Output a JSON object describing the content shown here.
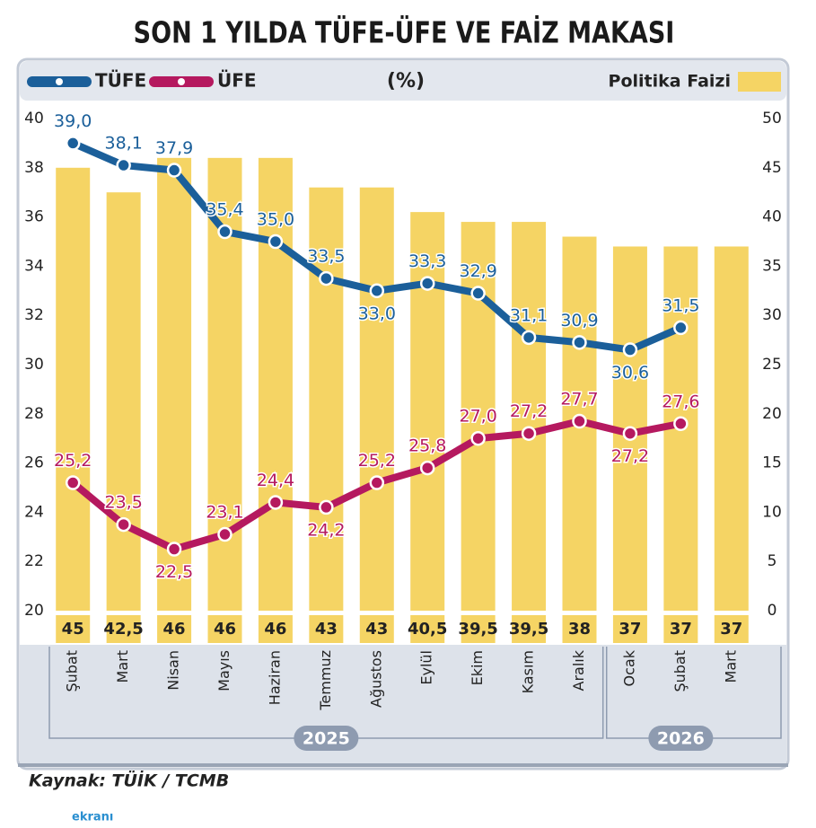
{
  "chart_data": {
    "type": "combo",
    "title": "SON 1 YILDA TÜFE-ÜFE VE FAİZ MAKASI",
    "unit": "(%)",
    "source": "Kaynak:  TÜİK / TCMB",
    "watermark": "ekranı",
    "categories": [
      "Şubat",
      "Mart",
      "Nisan",
      "Mayıs",
      "Haziran",
      "Temmuz",
      "Ağustos",
      "Eylül",
      "Ekim",
      "Kasım",
      "Aralık",
      "Ocak",
      "Şubat",
      "Mart"
    ],
    "groups": [
      {
        "label": "2025",
        "count": 11
      },
      {
        "label": "2026",
        "count": 3
      }
    ],
    "ylim": [
      20,
      40
    ],
    "yticks": [
      20,
      22,
      24,
      26,
      28,
      30,
      32,
      34,
      36,
      38,
      40
    ],
    "y2lim": [
      0,
      50
    ],
    "y2ticks": [
      0,
      5,
      10,
      15,
      20,
      25,
      30,
      35,
      40,
      45,
      50
    ],
    "series": [
      {
        "name": "TÜFE",
        "type": "line",
        "color": "#1b5f9a",
        "values": [
          39.0,
          38.1,
          37.9,
          35.4,
          35.0,
          33.5,
          33.0,
          33.3,
          32.9,
          31.1,
          30.9,
          30.6,
          31.5,
          null
        ],
        "value_labels": [
          "39,0",
          "38,1",
          "37,9",
          "35,4",
          "35,0",
          "33,5",
          "33,0",
          "33,3",
          "32,9",
          "31,1",
          "30,9",
          "30,6",
          "31,5",
          null
        ]
      },
      {
        "name": "ÜFE",
        "type": "line",
        "color": "#b5195f",
        "values": [
          25.2,
          23.5,
          22.5,
          23.1,
          24.4,
          24.2,
          25.2,
          25.8,
          27.0,
          27.2,
          27.7,
          27.2,
          27.6,
          null
        ],
        "value_labels": [
          "25,2",
          "23,5",
          "22,5",
          "23,1",
          "24,4",
          "24,2",
          "25,2",
          "25,8",
          "27,0",
          "27,2",
          "27,7",
          "27,2",
          "27,6",
          null
        ]
      },
      {
        "name": "Politika Faizi",
        "type": "bar",
        "axis": "y2",
        "color": "#f5d464",
        "values": [
          45,
          42.5,
          46,
          46,
          46,
          43,
          43,
          40.5,
          39.5,
          39.5,
          38,
          37,
          37,
          37
        ],
        "value_labels": [
          "45",
          "42,5",
          "46",
          "46",
          "46",
          "43",
          "43",
          "40,5",
          "39,5",
          "39,5",
          "38",
          "37",
          "37",
          "37"
        ]
      }
    ]
  }
}
